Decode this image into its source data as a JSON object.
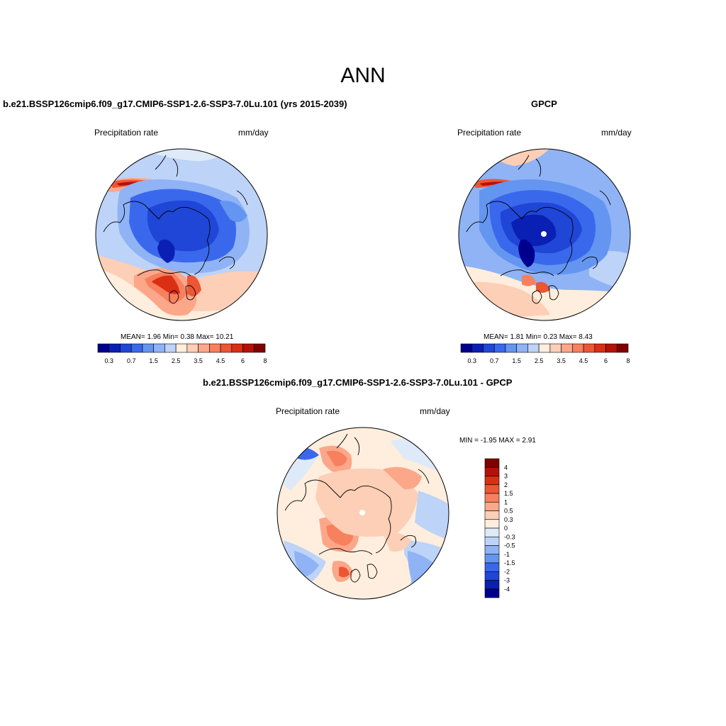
{
  "figure": {
    "title": "ANN"
  },
  "colors": {
    "sequential_scale": [
      "#00008f",
      "#0a1fb4",
      "#1f46d6",
      "#3a68ec",
      "#6495f0",
      "#8fb3f5",
      "#bdd3f8",
      "#ffeedd",
      "#fccfb6",
      "#fca78a",
      "#f7805e",
      "#ee5535",
      "#da2e15",
      "#b31306",
      "#800000"
    ],
    "difference_scale": [
      "#00008f",
      "#0a1fb4",
      "#1f46d6",
      "#3a68ec",
      "#6495f0",
      "#8fb3f5",
      "#bdd3f8",
      "#deeaf8",
      "#ffeedd",
      "#fccfb6",
      "#fca78a",
      "#f7805e",
      "#ee5535",
      "#da2e15",
      "#b31306",
      "#800000"
    ],
    "coastline": "#000000"
  },
  "panels": {
    "model": {
      "title": "b.e21.BSSP126cmip6.f09_g17.CMIP6-SSP1-2.6-SSP3-7.0Lu.101 (yrs 2015-2039)",
      "variable": "Precipitation rate",
      "units": "mm/day",
      "stats": {
        "mean_label": "MEAN=",
        "mean": "1.96",
        "min_label": "Min=",
        "min": "0.38",
        "max_label": "Max=",
        "max": "10.21"
      },
      "colorbar_labels": [
        "0.3",
        "0.7",
        "1.5",
        "2.5",
        "3.5",
        "4.5",
        "6",
        "8"
      ]
    },
    "obs": {
      "title": "GPCP",
      "variable": "Precipitation rate",
      "units": "mm/day",
      "stats": {
        "mean_label": "MEAN=",
        "mean": "1.81",
        "min_label": "Min=",
        "min": "0.23",
        "max_label": "Max=",
        "max": "8.43"
      },
      "colorbar_labels": [
        "0.3",
        "0.7",
        "1.5",
        "2.5",
        "3.5",
        "4.5",
        "6",
        "8"
      ]
    },
    "diff": {
      "title": "b.e21.BSSP126cmip6.f09_g17.CMIP6-SSP1-2.6-SSP3-7.0Lu.101 - GPCP",
      "variable": "Precipitation rate",
      "units": "mm/day",
      "minmax": {
        "min_label": "MIN =",
        "min": "-1.95",
        "max_label": "MAX =",
        "max": "2.91"
      },
      "colorbar_labels": [
        "4",
        "3",
        "2",
        "1.5",
        "1",
        "0.5",
        "0.3",
        "0",
        "-0.3",
        "-0.5",
        "-1",
        "-1.5",
        "-2",
        "-3",
        "-4"
      ]
    }
  }
}
